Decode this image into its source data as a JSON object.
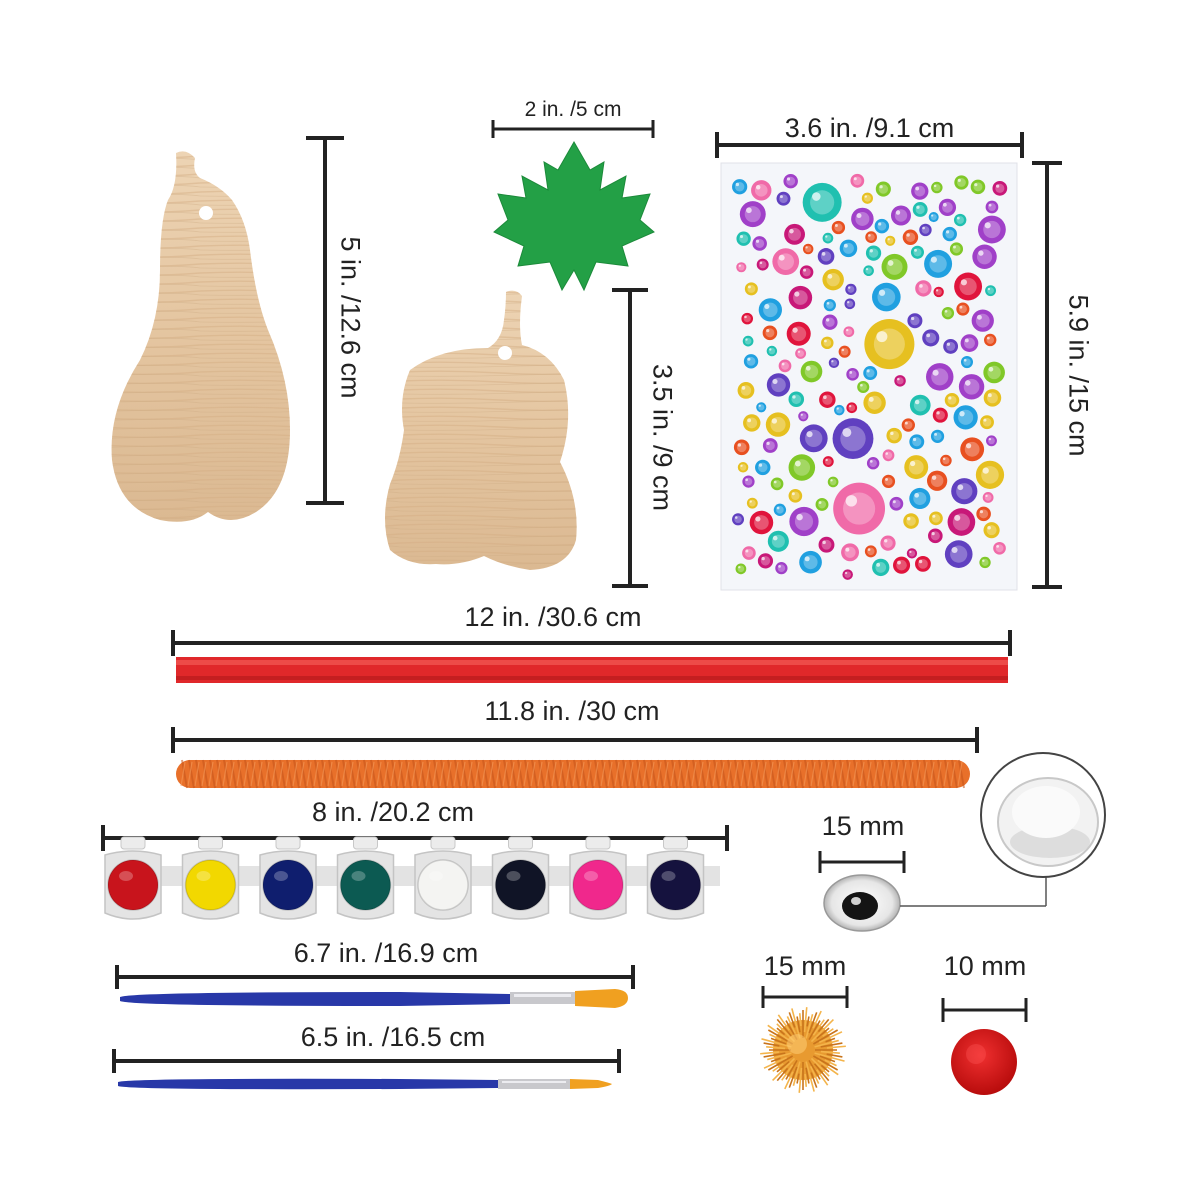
{
  "measurements": {
    "tall_gourd_height": "5 in. /12.6 cm",
    "pumpkin_height": "3.5 in. /9 cm",
    "leaf_width": "2 in. /5 cm",
    "gem_sheet_width": "3.6 in. /9.1 cm",
    "gem_sheet_height": "5.9 in. /15 cm",
    "ribbon_length": "12 in. /30.6 cm",
    "pipe_cleaner_length": "11.8 in. /30 cm",
    "paint_strip_length": "8 in. /20.2 cm",
    "brush_flat_length": "6.7 in. /16.9 cm",
    "brush_round_length": "6.5 in. /16.5 cm",
    "googly_eye_size": "15 mm",
    "glitter_pompom_size": "15 mm",
    "red_pompom_size": "10 mm"
  },
  "paint_colors": [
    "#c8141c",
    "#f2d800",
    "#0f1e6e",
    "#0c5a52",
    "#f4f4f2",
    "#101426",
    "#f0288c",
    "#15123e"
  ],
  "colors": {
    "wood": "#e8ccaa",
    "leaf": "#23a046",
    "ribbon": "#e0282a",
    "pipe_cleaner": "#e8702a",
    "brush_handle": "#2838a8",
    "brush_tip": "#f0a020",
    "pompom_glitter": "#e89a30",
    "pompom_red": "#d81818"
  }
}
